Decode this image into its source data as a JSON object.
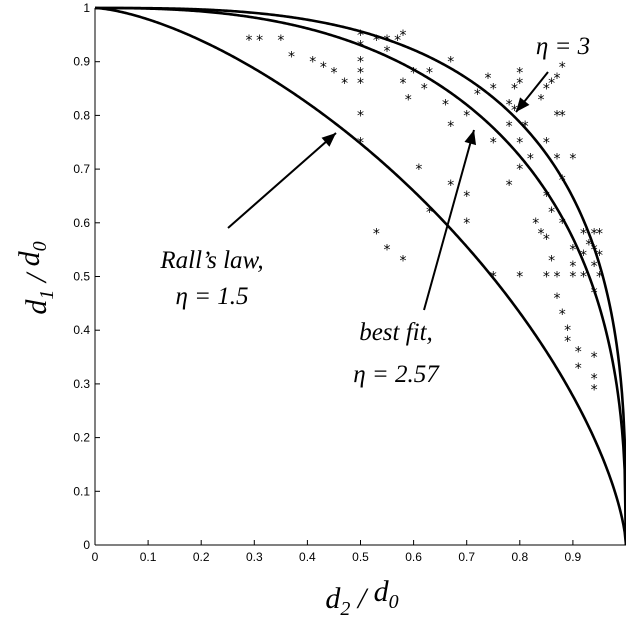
{
  "chart_data": {
    "type": "scatter",
    "xlabel": {
      "main": "d",
      "sub": "2",
      "sep": " / ",
      "main2": "d",
      "sub2": "0"
    },
    "ylabel": {
      "main": "d",
      "sub": "1",
      "sep": " / ",
      "main2": "d",
      "sub2": "0"
    },
    "xlim": [
      0,
      1
    ],
    "ylim": [
      0,
      1
    ],
    "x_ticks": [
      "0",
      "0.1",
      "0.2",
      "0.3",
      "0.4",
      "0.5",
      "0.6",
      "0.7",
      "0.8",
      "0.9"
    ],
    "y_ticks": [
      "0",
      "0.1",
      "0.2",
      "0.3",
      "0.4",
      "0.5",
      "0.6",
      "0.7",
      "0.8",
      "0.9",
      "1"
    ],
    "grid": false,
    "curves": [
      {
        "eta": 1.5,
        "annotation": [
          "Rall’s law,",
          "η = 1.5"
        ]
      },
      {
        "eta": 2.57,
        "annotation": [
          "best fit,",
          "η = 2.57"
        ]
      },
      {
        "eta": 3,
        "annotation": [
          "η = 3"
        ]
      }
    ],
    "points": [
      [
        0.29,
        0.94
      ],
      [
        0.31,
        0.94
      ],
      [
        0.35,
        0.94
      ],
      [
        0.37,
        0.91
      ],
      [
        0.41,
        0.9
      ],
      [
        0.43,
        0.89
      ],
      [
        0.45,
        0.88
      ],
      [
        0.47,
        0.86
      ],
      [
        0.5,
        0.95
      ],
      [
        0.5,
        0.93
      ],
      [
        0.5,
        0.9
      ],
      [
        0.5,
        0.88
      ],
      [
        0.5,
        0.86
      ],
      [
        0.5,
        0.8
      ],
      [
        0.5,
        0.75
      ],
      [
        0.53,
        0.94
      ],
      [
        0.55,
        0.94
      ],
      [
        0.55,
        0.92
      ],
      [
        0.57,
        0.94
      ],
      [
        0.58,
        0.95
      ],
      [
        0.58,
        0.86
      ],
      [
        0.59,
        0.83
      ],
      [
        0.6,
        0.88
      ],
      [
        0.61,
        0.7
      ],
      [
        0.62,
        0.85
      ],
      [
        0.63,
        0.88
      ],
      [
        0.63,
        0.62
      ],
      [
        0.66,
        0.82
      ],
      [
        0.67,
        0.9
      ],
      [
        0.67,
        0.78
      ],
      [
        0.67,
        0.67
      ],
      [
        0.7,
        0.8
      ],
      [
        0.7,
        0.6
      ],
      [
        0.7,
        0.65
      ],
      [
        0.72,
        0.84
      ],
      [
        0.74,
        0.87
      ],
      [
        0.75,
        0.85
      ],
      [
        0.75,
        0.75
      ],
      [
        0.75,
        0.5
      ],
      [
        0.78,
        0.82
      ],
      [
        0.78,
        0.78
      ],
      [
        0.78,
        0.67
      ],
      [
        0.79,
        0.85
      ],
      [
        0.79,
        0.81
      ],
      [
        0.8,
        0.88
      ],
      [
        0.8,
        0.86
      ],
      [
        0.8,
        0.75
      ],
      [
        0.8,
        0.7
      ],
      [
        0.8,
        0.5
      ],
      [
        0.81,
        0.78
      ],
      [
        0.82,
        0.72
      ],
      [
        0.83,
        0.6
      ],
      [
        0.84,
        0.83
      ],
      [
        0.84,
        0.58
      ],
      [
        0.85,
        0.85
      ],
      [
        0.85,
        0.75
      ],
      [
        0.85,
        0.65
      ],
      [
        0.85,
        0.57
      ],
      [
        0.85,
        0.5
      ],
      [
        0.86,
        0.86
      ],
      [
        0.86,
        0.62
      ],
      [
        0.86,
        0.53
      ],
      [
        0.87,
        0.87
      ],
      [
        0.87,
        0.8
      ],
      [
        0.87,
        0.72
      ],
      [
        0.87,
        0.5
      ],
      [
        0.87,
        0.46
      ],
      [
        0.88,
        0.89
      ],
      [
        0.88,
        0.8
      ],
      [
        0.88,
        0.68
      ],
      [
        0.88,
        0.6
      ],
      [
        0.88,
        0.43
      ],
      [
        0.89,
        0.4
      ],
      [
        0.89,
        0.38
      ],
      [
        0.9,
        0.72
      ],
      [
        0.9,
        0.55
      ],
      [
        0.9,
        0.52
      ],
      [
        0.9,
        0.5
      ],
      [
        0.91,
        0.36
      ],
      [
        0.91,
        0.33
      ],
      [
        0.92,
        0.58
      ],
      [
        0.92,
        0.54
      ],
      [
        0.92,
        0.5
      ],
      [
        0.93,
        0.56
      ],
      [
        0.94,
        0.58
      ],
      [
        0.94,
        0.55
      ],
      [
        0.94,
        0.52
      ],
      [
        0.94,
        0.47
      ],
      [
        0.94,
        0.35
      ],
      [
        0.94,
        0.31
      ],
      [
        0.94,
        0.29
      ],
      [
        0.95,
        0.58
      ],
      [
        0.95,
        0.54
      ],
      [
        0.95,
        0.5
      ],
      [
        0.53,
        0.58
      ],
      [
        0.55,
        0.55
      ],
      [
        0.58,
        0.53
      ]
    ]
  }
}
